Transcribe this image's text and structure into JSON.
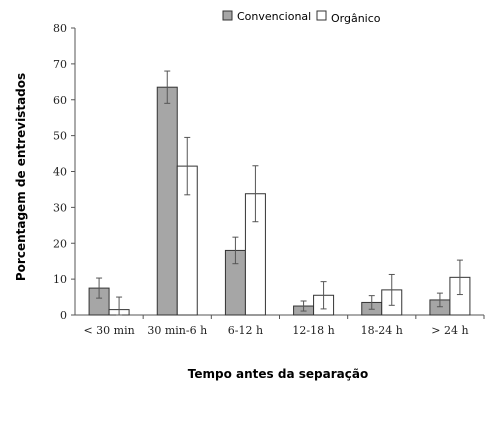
{
  "chart_data": {
    "type": "bar",
    "xlabel": "Tempo antes da separação",
    "ylabel": "Porcentagem de entrevistados",
    "categories": [
      "< 30 min",
      "30 min-6 h",
      "6-12 h",
      "12-18 h",
      "18-24 h",
      "> 24 h"
    ],
    "series": [
      {
        "name": "Convencional",
        "color": "#a6a6a6",
        "values": [
          7.5,
          63.5,
          18,
          2.5,
          3.5,
          4.2
        ],
        "error": [
          2.8,
          4.5,
          3.7,
          1.4,
          1.9,
          1.9
        ]
      },
      {
        "name": "Orgânico",
        "color": "#ffffff",
        "values": [
          1.5,
          41.5,
          33.8,
          5.5,
          7,
          10.5
        ],
        "error": [
          3.5,
          8,
          7.8,
          3.8,
          4.3,
          4.8
        ]
      }
    ],
    "ylim": [
      0,
      80
    ],
    "yticks": [
      0,
      10,
      20,
      30,
      40,
      50,
      60,
      70,
      80
    ],
    "legend_position": "top",
    "grid": false
  }
}
